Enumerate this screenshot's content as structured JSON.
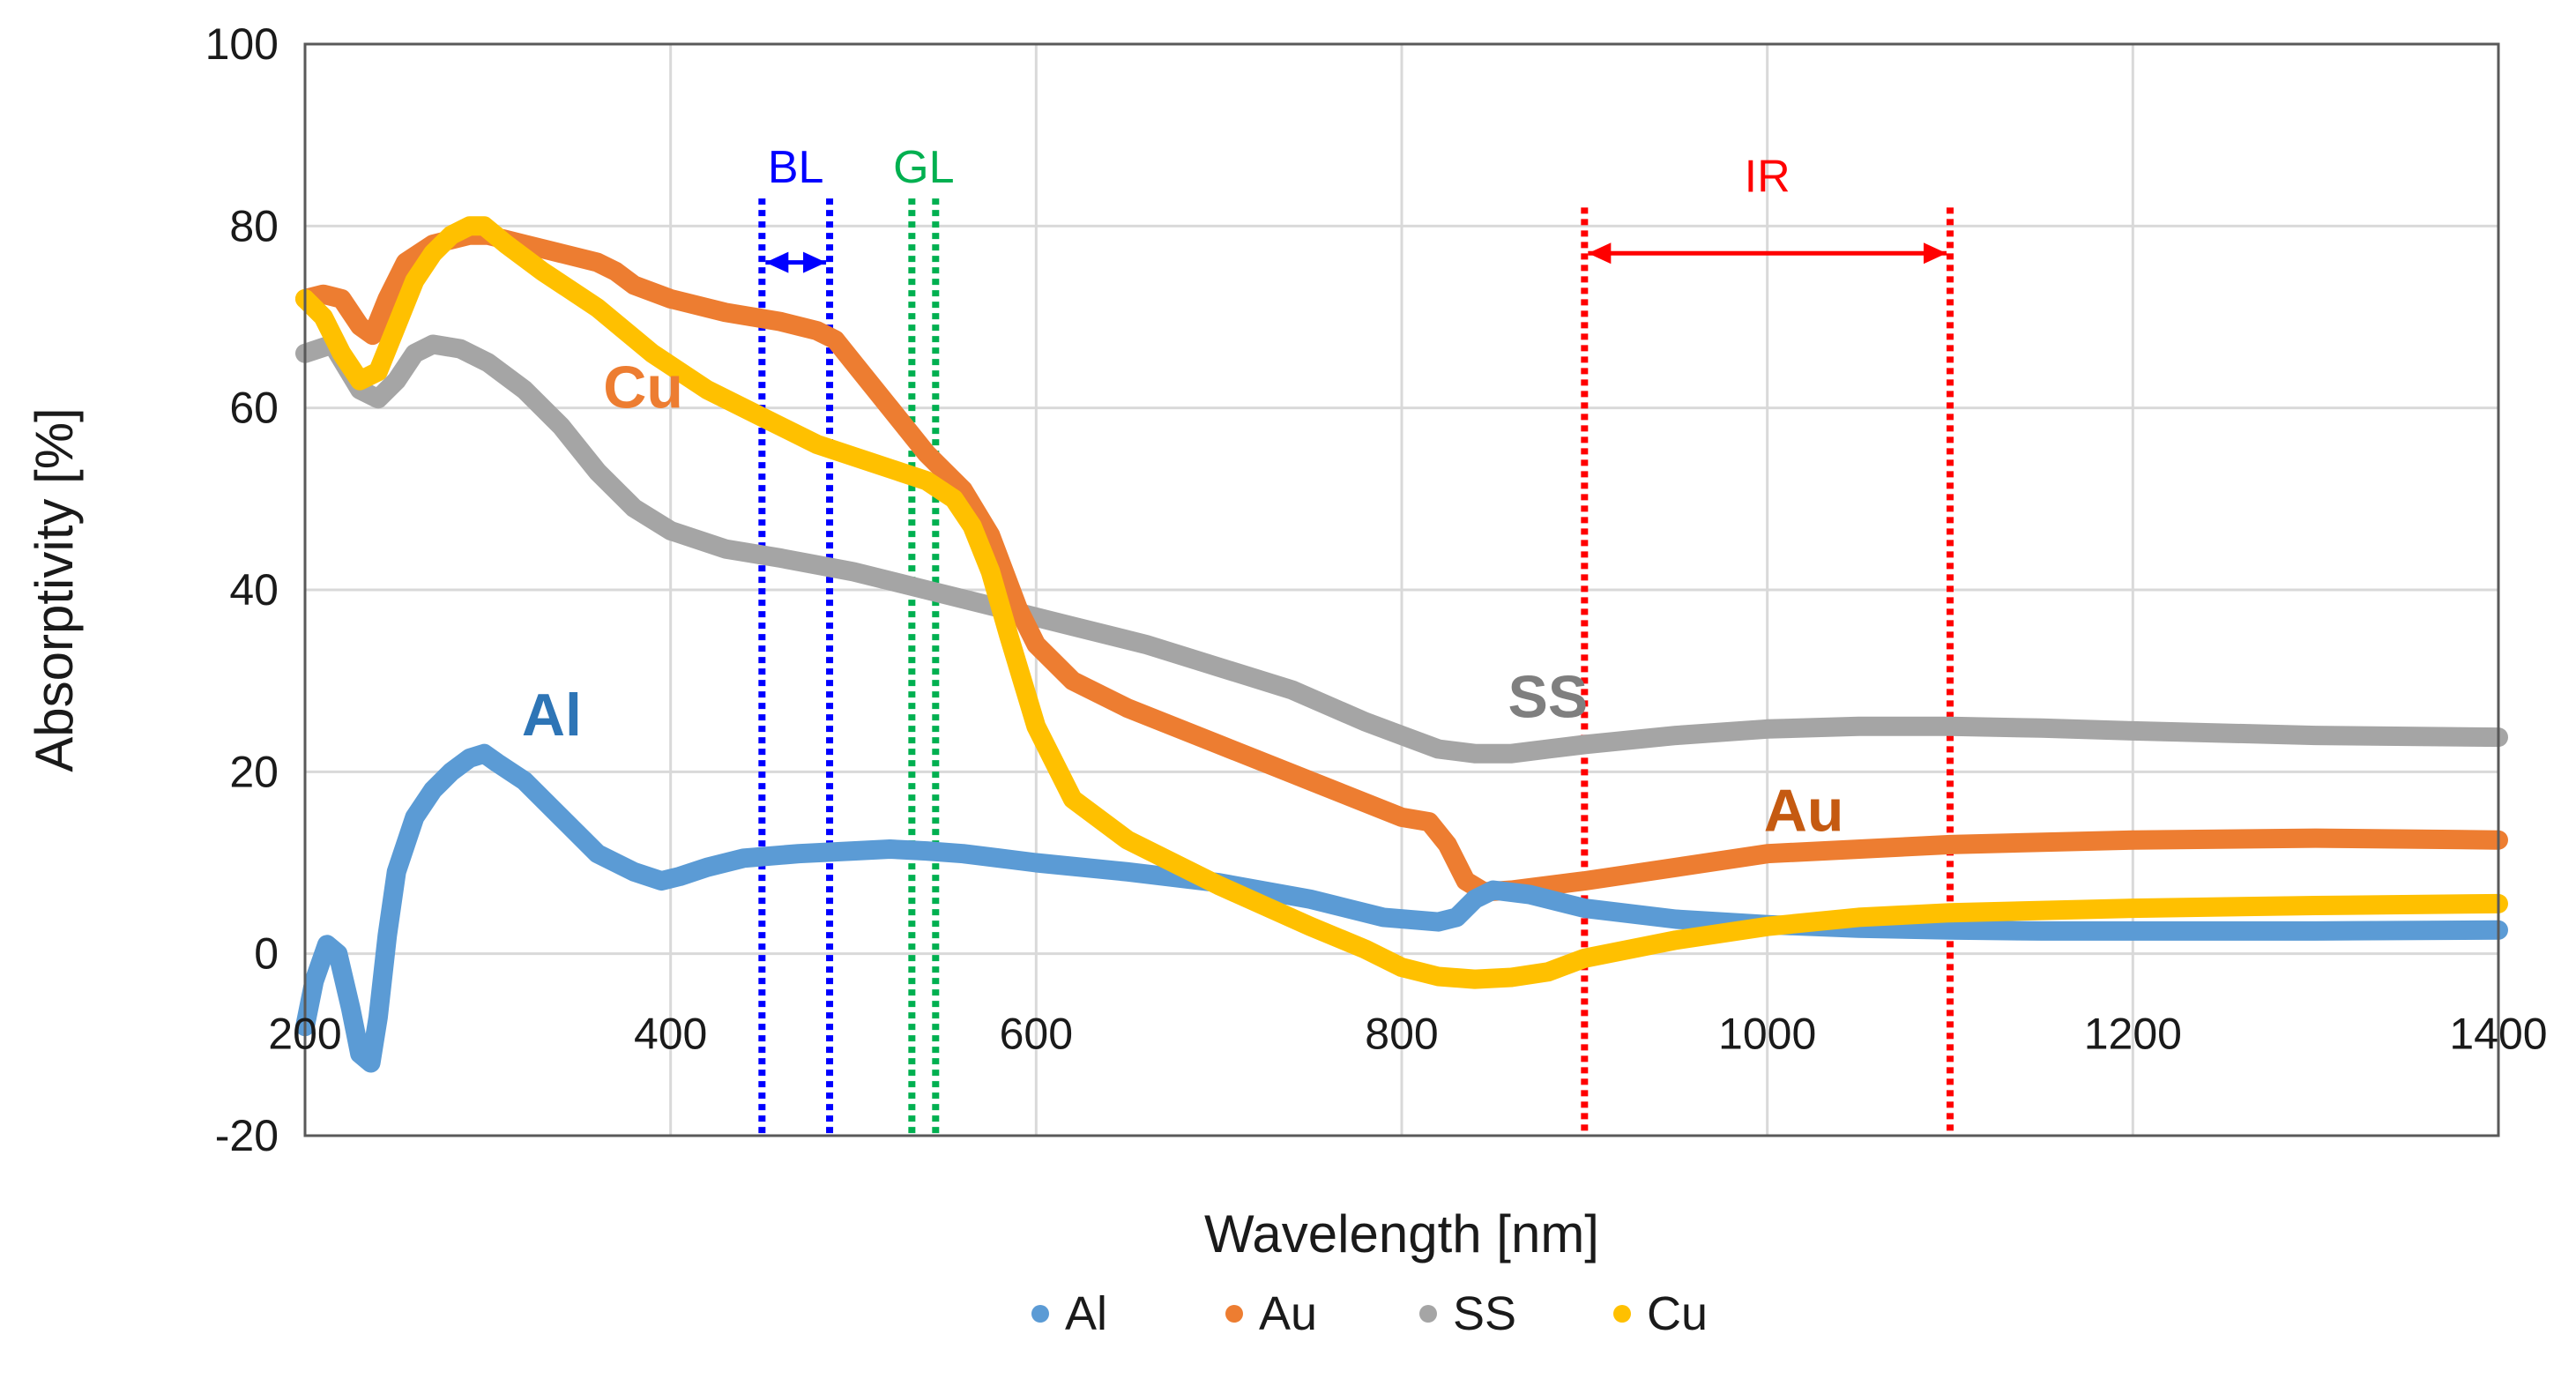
{
  "chart_data": {
    "type": "line",
    "title": "",
    "xlabel": "Wavelength [nm]",
    "ylabel": "Absorptivity [%]",
    "xlim": [
      200,
      1400
    ],
    "ylim": [
      -20,
      100
    ],
    "xticks": [
      200,
      400,
      600,
      800,
      1000,
      1200,
      1400
    ],
    "yticks": [
      -20,
      0,
      20,
      40,
      60,
      80,
      100
    ],
    "grid": true,
    "legend_position": "bottom",
    "series": [
      {
        "name": "Al",
        "color": "#5b9bd5",
        "label_color": "#2e75b6",
        "x": [
          200,
          205,
          212,
          218,
          225,
          230,
          236,
          240,
          245,
          250,
          260,
          270,
          280,
          290,
          298,
          305,
          320,
          340,
          360,
          380,
          395,
          405,
          420,
          440,
          470,
          500,
          520,
          540,
          560,
          580,
          600,
          650,
          700,
          750,
          790,
          820,
          830,
          840,
          850,
          870,
          900,
          950,
          1000,
          1050,
          1100,
          1150,
          1200,
          1300,
          1400
        ],
        "y": [
          -8,
          -3,
          1,
          0,
          -6,
          -11,
          -12,
          -7,
          2,
          9,
          15,
          18,
          20,
          21.5,
          22,
          21,
          19,
          15,
          11,
          9,
          8,
          8.5,
          9.5,
          10.5,
          11,
          11.3,
          11.5,
          11.3,
          11,
          10.5,
          10,
          9,
          7.8,
          6,
          4,
          3.5,
          4,
          6,
          7,
          6.5,
          5,
          3.8,
          3.2,
          2.8,
          2.6,
          2.5,
          2.5,
          2.5,
          2.6
        ]
      },
      {
        "name": "Au",
        "color": "#ed7d31",
        "label_color": "#c55a11",
        "x": [
          200,
          210,
          220,
          230,
          237,
          245,
          255,
          270,
          290,
          300,
          320,
          340,
          360,
          370,
          380,
          400,
          430,
          460,
          480,
          490,
          500,
          520,
          540,
          560,
          575,
          590,
          600,
          620,
          650,
          700,
          750,
          800,
          815,
          825,
          835,
          845,
          860,
          900,
          950,
          1000,
          1100,
          1200,
          1300,
          1400
        ],
        "y": [
          72,
          72.5,
          72,
          69,
          68,
          72,
          76,
          78,
          79,
          79,
          78,
          77,
          76,
          75,
          73.5,
          72,
          70.5,
          69.5,
          68.5,
          67.5,
          65,
          60,
          55,
          51,
          46,
          38,
          34,
          30,
          27,
          23,
          19,
          15,
          14.5,
          12,
          8,
          6.8,
          7,
          8,
          9.5,
          11,
          12,
          12.5,
          12.7,
          12.5
        ]
      },
      {
        "name": "SS",
        "color": "#a5a5a5",
        "label_color": "#7f7f7f",
        "x": [
          200,
          215,
          230,
          240,
          250,
          260,
          270,
          285,
          300,
          320,
          340,
          360,
          380,
          400,
          430,
          460,
          500,
          540,
          580,
          620,
          660,
          700,
          740,
          780,
          800,
          820,
          840,
          860,
          880,
          900,
          950,
          1000,
          1050,
          1100,
          1150,
          1200,
          1300,
          1400
        ],
        "y": [
          66,
          67,
          62,
          61,
          63,
          66,
          67,
          66.5,
          65,
          62,
          58,
          53,
          49,
          46.5,
          44.5,
          43.5,
          42,
          40,
          38,
          36,
          34,
          31.5,
          29,
          25.5,
          24,
          22.5,
          22,
          22,
          22.5,
          23,
          24,
          24.7,
          25,
          25,
          24.8,
          24.5,
          24,
          23.8
        ]
      },
      {
        "name": "Cu",
        "color": "#ffc000",
        "label_color": "#ed7d31",
        "x": [
          200,
          210,
          220,
          230,
          240,
          250,
          260,
          270,
          280,
          290,
          298,
          310,
          330,
          360,
          390,
          420,
          450,
          480,
          510,
          540,
          555,
          565,
          575,
          585,
          600,
          620,
          650,
          700,
          750,
          780,
          800,
          820,
          840,
          860,
          880,
          900,
          950,
          1000,
          1050,
          1100,
          1200,
          1300,
          1400
        ],
        "y": [
          72,
          70,
          66,
          63,
          64,
          69,
          74,
          77,
          79,
          80,
          80,
          78,
          75,
          71,
          66,
          62,
          59,
          56,
          54,
          52,
          50,
          47,
          42,
          35,
          25,
          17,
          12.5,
          7.5,
          3,
          0.5,
          -1.5,
          -2.5,
          -2.8,
          -2.6,
          -2,
          -0.5,
          1.5,
          3,
          4,
          4.5,
          5,
          5.3,
          5.5
        ]
      }
    ],
    "series_labels": [
      {
        "text": "Al",
        "x": 335,
        "y": 24
      },
      {
        "text": "Au",
        "x": 1020,
        "y": 13.5
      },
      {
        "text": "SS",
        "x": 880,
        "y": 26
      },
      {
        "text": "Cu",
        "x": 385,
        "y": 60
      }
    ],
    "bands": [
      {
        "label": "BL",
        "color": "#0000ff",
        "x_start": 450,
        "x_end": 487,
        "arrow_y": 76,
        "label_y": 84
      },
      {
        "label": "GL",
        "color": "#00b050",
        "x_start": 532,
        "x_end": 545,
        "arrow_y": null,
        "label_y": 84
      },
      {
        "label": "IR",
        "color": "#ff0000",
        "x_start": 900,
        "x_end": 1100,
        "arrow_y": 77,
        "label_y": 83
      }
    ],
    "legend": [
      "Al",
      "Au",
      "SS",
      "Cu"
    ]
  }
}
